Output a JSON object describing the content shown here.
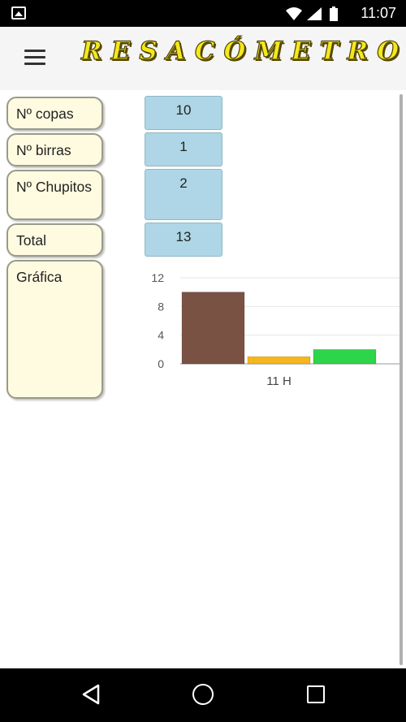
{
  "status_bar": {
    "time": "11:07"
  },
  "app_bar": {
    "title": "RESACÓMETRO",
    "menu_icon": "hamburger-menu-icon"
  },
  "labels": {
    "copas": "Nº copas",
    "birras": "Nº birras",
    "chupitos": "Nº Chupitos",
    "total": "Total",
    "grafica": "Gráfica"
  },
  "values": {
    "copas": "10",
    "birras": "1",
    "chupitos": "2",
    "total": "13"
  },
  "colors": {
    "label_bg": "#fffbe0",
    "value_bg": "#aed6e6",
    "bar_copas": "#7a5244",
    "bar_birras": "#f5b71c",
    "bar_chupitos": "#2ed44a"
  },
  "chart_data": {
    "type": "bar",
    "categories": [
      "11 H"
    ],
    "series": [
      {
        "values": [
          10
        ],
        "color": "#7a5244"
      },
      {
        "values": [
          1
        ],
        "color": "#f5b71c"
      },
      {
        "values": [
          2
        ],
        "color": "#2ed44a"
      }
    ],
    "ylim": [
      0,
      12
    ],
    "yticks": [
      "0",
      "4",
      "8",
      "12"
    ],
    "grid": true
  }
}
